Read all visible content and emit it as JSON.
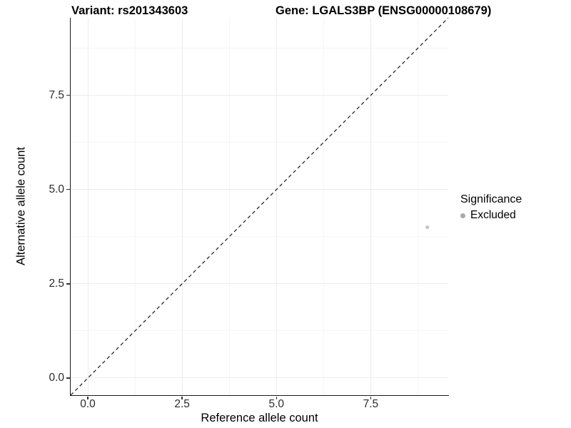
{
  "header": {
    "variant_title": "Variant: rs201343603",
    "gene_title": "Gene: LGALS3BP (ENSG00000108679)"
  },
  "chart_data": {
    "type": "scatter",
    "title": "Variant: rs201343603   Gene: LGALS3BP (ENSG00000108679)",
    "xlabel": "Reference allele count",
    "ylabel": "Alternative allele count",
    "xlim": [
      -0.455,
      9.555
    ],
    "ylim": [
      -0.455,
      9.555
    ],
    "x_ticks": [
      0,
      2.5,
      5,
      7.5
    ],
    "y_ticks": [
      0,
      2.5,
      5,
      7.5
    ],
    "x_tick_labels": [
      "0.0",
      "2.5",
      "5.0",
      "7.5"
    ],
    "y_tick_labels": [
      "0.0",
      "2.5",
      "5.0",
      "7.5"
    ],
    "x_minor_gridlines": [
      1.25,
      3.75,
      6.25,
      8.75
    ],
    "y_minor_gridlines": [
      1.25,
      3.75,
      6.25,
      8.75
    ],
    "grid": "major-and-minor",
    "series": [
      {
        "name": "Excluded",
        "color": "#c4c4c4",
        "point_radius": 2.5,
        "points": [
          {
            "x": 9,
            "y": 4
          }
        ]
      }
    ],
    "reference_line": {
      "kind": "identity y=x",
      "style": "dashed",
      "color": "#1a1a1a"
    },
    "legend": {
      "position": "right",
      "title": "Significance",
      "items": [
        {
          "label": "Excluded",
          "color": "#a9a9a9"
        }
      ]
    }
  },
  "colors": {
    "background": "#ffffff",
    "axis_line": "#1a1a1a",
    "grid_major": "#ececec",
    "grid_minor": "#f5f5f5",
    "tick_label": "#2b2b2b",
    "point": "#c4c4c4",
    "legend_key": "#a9a9a9"
  }
}
